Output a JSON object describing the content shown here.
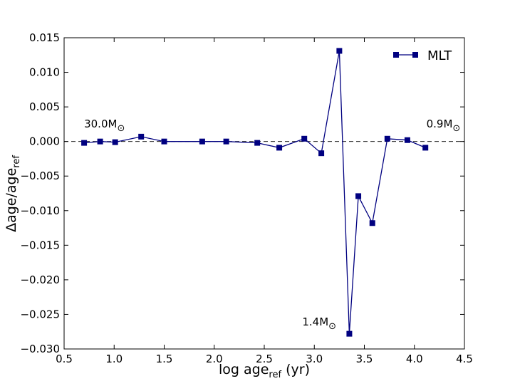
{
  "chart_data": {
    "type": "line",
    "xlabel": {
      "main": "log age",
      "sub": "ref",
      "suffix": " (yr)"
    },
    "ylabel": {
      "main": "Δage/age",
      "sub": "ref"
    },
    "xlim": [
      0.5,
      4.5
    ],
    "ylim": [
      -0.03,
      0.015
    ],
    "xticks": [
      0.5,
      1.0,
      1.5,
      2.0,
      2.5,
      3.0,
      3.5,
      4.0,
      4.5
    ],
    "xtick_labels": [
      "0.5",
      "1.0",
      "1.5",
      "2.0",
      "2.5",
      "3.0",
      "3.5",
      "4.0",
      "4.5"
    ],
    "yticks": [
      0.015,
      0.01,
      0.005,
      0.0,
      -0.005,
      -0.01,
      -0.015,
      -0.02,
      -0.025,
      -0.03
    ],
    "ytick_labels": [
      "0.015",
      "0.010",
      "0.005",
      "0.000",
      "−0.005",
      "−0.010",
      "−0.015",
      "−0.020",
      "−0.025",
      "−0.030"
    ],
    "grid": false,
    "legend_position": "top-right",
    "reference_line": {
      "y": 0.0,
      "style": "dashed"
    },
    "series": [
      {
        "name": "MLT",
        "color": "#000080",
        "marker": "square",
        "x": [
          0.7,
          0.86,
          1.01,
          1.27,
          1.5,
          1.88,
          2.12,
          2.43,
          2.65,
          2.9,
          3.07,
          3.25,
          3.35,
          3.44,
          3.58,
          3.73,
          3.93,
          4.11
        ],
        "y": [
          -0.0002,
          0.0,
          -0.0001,
          0.0007,
          0.0,
          0.0,
          0.0,
          -0.0002,
          -0.0009,
          0.0004,
          -0.0017,
          0.0131,
          -0.0278,
          -0.0079,
          -0.0118,
          0.0004,
          0.0002,
          -0.0009
        ]
      }
    ],
    "annotations": [
      {
        "text": "30.0M",
        "symbol": "⊙",
        "x": 0.7,
        "y": 0.002
      },
      {
        "text": "0.9M",
        "symbol": "⊙",
        "x": 4.12,
        "y": 0.002
      },
      {
        "text": "1.4M",
        "symbol": "⊙",
        "x": 2.88,
        "y": -0.0266
      }
    ]
  }
}
